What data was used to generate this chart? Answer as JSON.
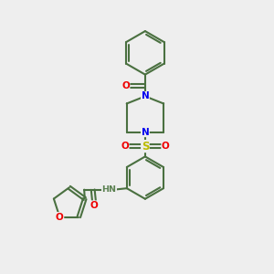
{
  "bg": "#eeeeee",
  "bc": "#4a7040",
  "NC": "#0000ee",
  "OC": "#ee0000",
  "SC": "#bbbb00",
  "HC": "#5a8050",
  "lw": 1.5,
  "xlim": [
    0,
    10
  ],
  "ylim": [
    0,
    10
  ]
}
